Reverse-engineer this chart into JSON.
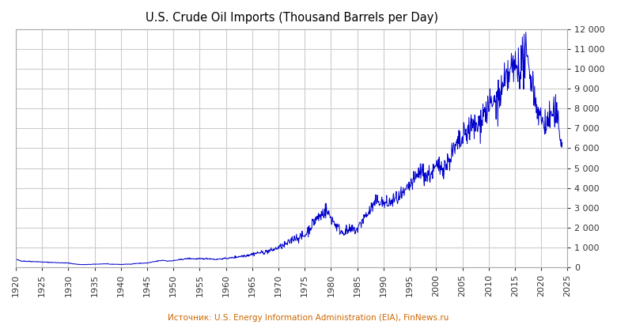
{
  "title": "U.S. Crude Oil Imports (Thousand Barrels per Day)",
  "source_text": "Источник: U.S. Energy Information Administration (EIA), FinNews.ru",
  "line_color": "#0000cc",
  "background_color": "#ffffff",
  "grid_color": "#cccccc",
  "ylim": [
    0,
    12000
  ],
  "yticks": [
    0,
    1000,
    2000,
    3000,
    4000,
    5000,
    6000,
    7000,
    8000,
    9000,
    10000,
    11000,
    12000
  ],
  "xlim_start": 1920,
  "xlim_end": 2025,
  "xticks": [
    1920,
    1925,
    1930,
    1935,
    1940,
    1945,
    1950,
    1955,
    1960,
    1965,
    1970,
    1975,
    1980,
    1985,
    1990,
    1995,
    2000,
    2005,
    2010,
    2015,
    2020,
    2025
  ],
  "data": {
    "years": [
      1920,
      1921,
      1922,
      1923,
      1924,
      1925,
      1926,
      1927,
      1928,
      1929,
      1930,
      1931,
      1932,
      1933,
      1934,
      1935,
      1936,
      1937,
      1938,
      1939,
      1940,
      1941,
      1942,
      1943,
      1944,
      1945,
      1946,
      1947,
      1948,
      1949,
      1950,
      1951,
      1952,
      1953,
      1954,
      1955,
      1956,
      1957,
      1958,
      1959,
      1960,
      1961,
      1962,
      1963,
      1964,
      1965,
      1966,
      1967,
      1968,
      1969,
      1970,
      1971,
      1972,
      1973,
      1974,
      1975,
      1976,
      1977,
      1978,
      1979,
      1980,
      1981,
      1982,
      1983,
      1984,
      1985,
      1986,
      1987,
      1988,
      1989,
      1990,
      1991,
      1992,
      1993,
      1994,
      1995,
      1996,
      1997,
      1998,
      1999,
      2000,
      2001,
      2002,
      2003,
      2004,
      2005,
      2006,
      2007,
      2008,
      2009,
      2010,
      2011,
      2012,
      2013,
      2014,
      2015,
      2016,
      2017,
      2018,
      2019,
      2020,
      2021,
      2022,
      2023,
      2024
    ],
    "values": [
      400,
      330,
      310,
      300,
      290,
      270,
      260,
      250,
      240,
      230,
      220,
      180,
      150,
      140,
      150,
      160,
      170,
      180,
      160,
      160,
      150,
      160,
      170,
      200,
      210,
      220,
      270,
      320,
      360,
      320,
      340,
      380,
      420,
      450,
      430,
      430,
      440,
      440,
      400,
      430,
      450,
      480,
      530,
      570,
      610,
      670,
      730,
      750,
      810,
      890,
      1000,
      1100,
      1260,
      1500,
      1500,
      1600,
      2000,
      2400,
      2600,
      2900,
      2500,
      2100,
      1800,
      1800,
      1900,
      1900,
      2400,
      2700,
      3100,
      3400,
      3200,
      3200,
      3400,
      3500,
      3700,
      4100,
      4400,
      4900,
      4600,
      4700,
      5000,
      5100,
      5200,
      5700,
      6100,
      6400,
      6900,
      7100,
      7100,
      7800,
      8000,
      8300,
      8500,
      9100,
      9800,
      10100,
      10200,
      10500,
      9800,
      8300,
      7400,
      7200,
      7700,
      7600,
      6200
    ]
  }
}
